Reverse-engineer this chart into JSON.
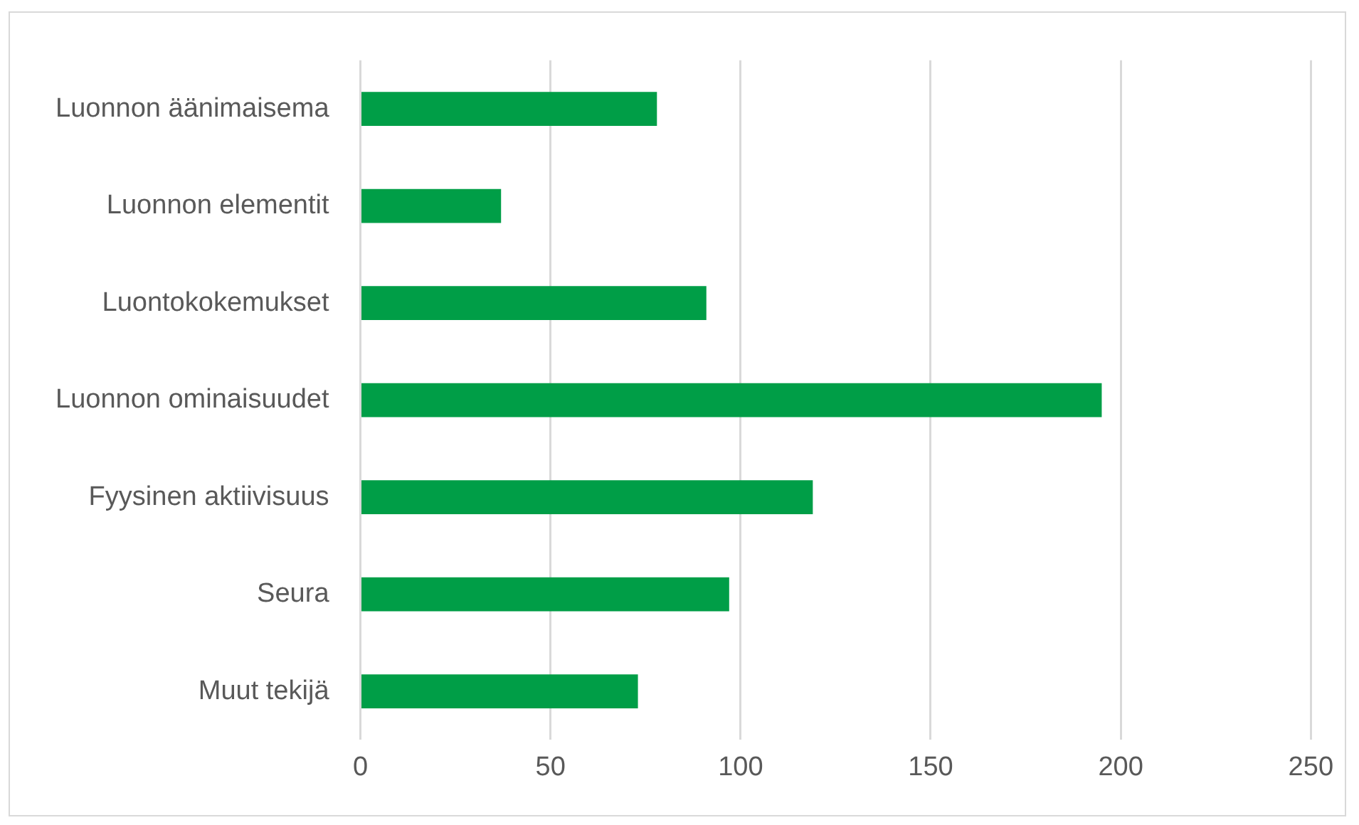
{
  "chart_data": {
    "type": "bar",
    "orientation": "horizontal",
    "categories": [
      "Luonnon äänimaisema",
      "Luonnon elementit",
      "Luontokokemukset",
      "Luonnon ominaisuudet",
      "Fyysinen aktiivisuus",
      "Seura",
      "Muut tekijä"
    ],
    "values": [
      78,
      37,
      91,
      195,
      119,
      97,
      73
    ],
    "color": "#009e47",
    "xlim": [
      0,
      250
    ],
    "xticks": [
      0,
      50,
      100,
      150,
      200,
      250
    ],
    "grid": "x"
  }
}
